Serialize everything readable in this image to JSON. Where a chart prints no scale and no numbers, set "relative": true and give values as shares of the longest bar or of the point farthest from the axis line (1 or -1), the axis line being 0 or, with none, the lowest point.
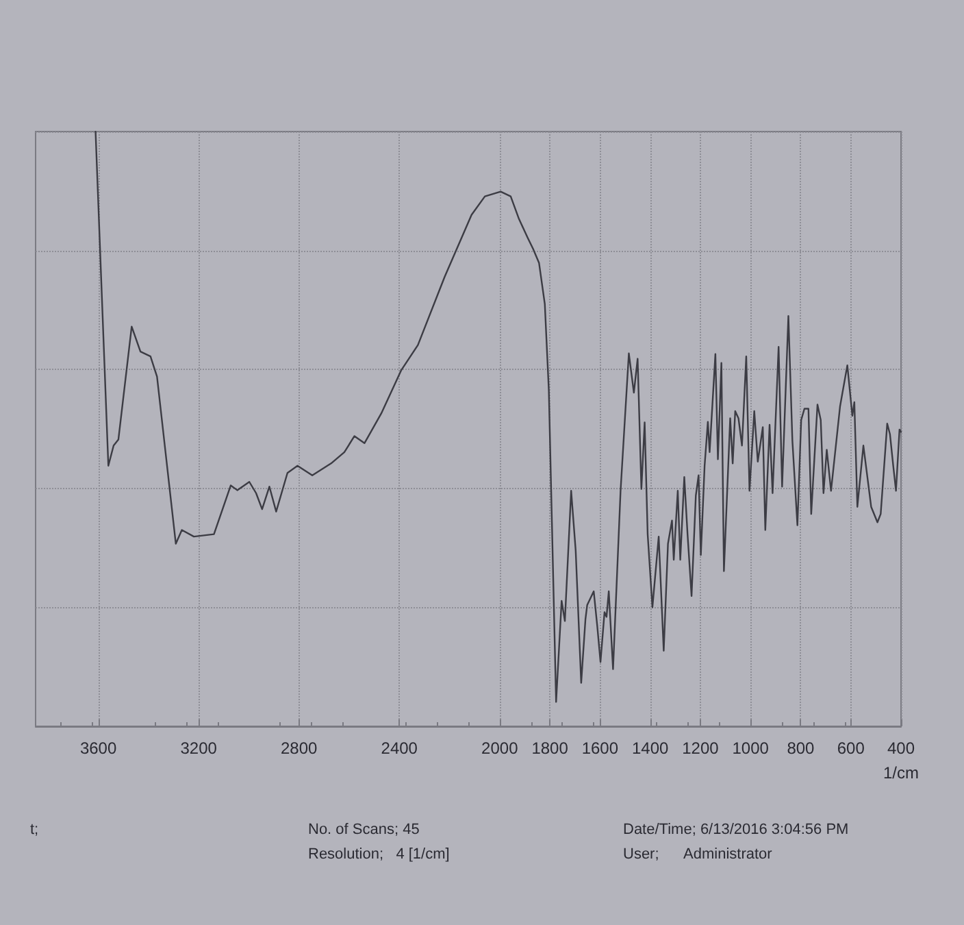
{
  "chart_data": {
    "type": "line",
    "relative": true,
    "xlabel": "1/cm",
    "xlim": [
      3850,
      400
    ],
    "xticks": [
      3600,
      3200,
      2800,
      2400,
      2000,
      1800,
      1600,
      1400,
      1200,
      1000,
      800,
      600,
      400
    ],
    "grid": true,
    "marker": "none",
    "line_style": "solid",
    "annotations": [
      "t;",
      "No. of Scans; 45",
      "Resolution;   4 [1/cm]",
      "Date/Time; 6/13/2016 3:04:56 PM",
      "User;      Administrator"
    ],
    "series": [
      {
        "color": "#3c3c44",
        "x": [
          3611,
          3560,
          3539,
          3520,
          3467,
          3432,
          3392,
          3366,
          3291,
          3267,
          3219,
          3139,
          3072,
          3046,
          2998,
          2971,
          2947,
          2918,
          2891,
          2846,
          2806,
          2747,
          2672,
          2619,
          2579,
          2539,
          2472,
          2392,
          2326,
          2219,
          2112,
          2059,
          1996,
          1956,
          1923,
          1889,
          1867,
          1843,
          1820,
          1804,
          1775,
          1753,
          1740,
          1715,
          1697,
          1675,
          1658,
          1651,
          1625,
          1611,
          1598,
          1582,
          1574,
          1565,
          1548,
          1518,
          1485,
          1465,
          1450,
          1435,
          1422,
          1410,
          1391,
          1366,
          1346,
          1329,
          1313,
          1306,
          1290,
          1280,
          1264,
          1251,
          1235,
          1218,
          1207,
          1198,
          1183,
          1170,
          1163,
          1140,
          1130,
          1116,
          1106,
          1081,
          1071,
          1061,
          1048,
          1034,
          1017,
          1004,
          985,
          971,
          951,
          941,
          924,
          912,
          888,
          874,
          849,
          833,
          813,
          798,
          785,
          769,
          758,
          733,
          720,
          709,
          696,
          679,
          643,
          614,
          594,
          586,
          574,
          550,
          519,
          494,
          481,
          455,
          444,
          431,
          420,
          406,
          400
        ],
        "values": [
          1.0,
          0.438,
          0.472,
          0.482,
          0.672,
          0.63,
          0.622,
          0.588,
          0.307,
          0.33,
          0.319,
          0.323,
          0.405,
          0.397,
          0.411,
          0.392,
          0.365,
          0.403,
          0.361,
          0.426,
          0.438,
          0.422,
          0.442,
          0.461,
          0.488,
          0.476,
          0.526,
          0.599,
          0.641,
          0.756,
          0.86,
          0.891,
          0.899,
          0.891,
          0.853,
          0.822,
          0.803,
          0.779,
          0.71,
          0.565,
          0.041,
          0.211,
          0.177,
          0.396,
          0.296,
          0.073,
          0.18,
          0.204,
          0.227,
          0.169,
          0.108,
          0.192,
          0.184,
          0.227,
          0.096,
          0.396,
          0.627,
          0.561,
          0.618,
          0.399,
          0.511,
          0.323,
          0.2,
          0.319,
          0.127,
          0.307,
          0.346,
          0.28,
          0.396,
          0.28,
          0.419,
          0.323,
          0.219,
          0.388,
          0.422,
          0.288,
          0.438,
          0.512,
          0.461,
          0.626,
          0.449,
          0.611,
          0.261,
          0.518,
          0.442,
          0.53,
          0.518,
          0.472,
          0.622,
          0.396,
          0.53,
          0.445,
          0.503,
          0.33,
          0.507,
          0.392,
          0.638,
          0.403,
          0.69,
          0.48,
          0.338,
          0.515,
          0.534,
          0.534,
          0.357,
          0.541,
          0.515,
          0.392,
          0.465,
          0.396,
          0.538,
          0.607,
          0.522,
          0.545,
          0.369,
          0.472,
          0.369,
          0.343,
          0.357,
          0.509,
          0.491,
          0.438,
          0.396,
          0.499,
          0.495
        ]
      }
    ]
  }
}
